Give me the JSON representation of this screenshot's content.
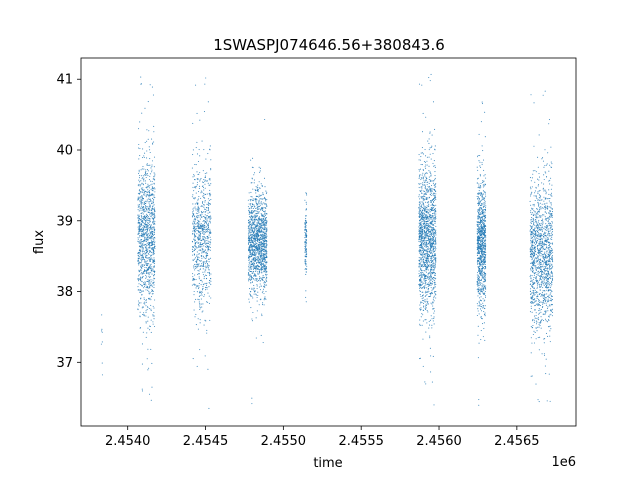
{
  "chart_data": {
    "type": "scatter",
    "title": "1SWASPJ074646.56+380843.6",
    "xlabel": "time",
    "ylabel": "flux",
    "x_offset_label": "1e6",
    "xlim": [
      2453700,
      2456880
    ],
    "ylim": [
      36.1,
      41.3
    ],
    "x_ticks": [
      2454000,
      2454500,
      2455000,
      2455500,
      2456000,
      2456500
    ],
    "x_tick_labels": [
      "2.4540",
      "2.4545",
      "2.4550",
      "2.4555",
      "2.4560",
      "2.4565"
    ],
    "y_ticks": [
      37,
      38,
      39,
      40,
      41
    ],
    "y_tick_labels": [
      "37",
      "38",
      "39",
      "40",
      "41"
    ],
    "marker_color": "#1f77b4",
    "grid": false,
    "legend": "none",
    "series": [
      {
        "observing_seasons": [
          {
            "x_start": 2453830,
            "x_end": 2453840,
            "y_center": 37.3,
            "y_spread": 0.3,
            "n": 8
          },
          {
            "x_start": 2454065,
            "x_end": 2454175,
            "y_center": 38.75,
            "y_spread": 0.55,
            "n": 1100,
            "y_min": 36.45,
            "y_max": 41.05
          },
          {
            "x_start": 2454415,
            "x_end": 2454535,
            "y_center": 38.75,
            "y_spread": 0.5,
            "n": 750,
            "y_min": 36.3,
            "y_max": 41.05
          },
          {
            "x_start": 2454775,
            "x_end": 2454895,
            "y_center": 38.7,
            "y_spread": 0.35,
            "n": 1300,
            "y_min": 36.4,
            "y_max": 40.8
          },
          {
            "x_start": 2455138,
            "x_end": 2455150,
            "y_center": 38.7,
            "y_spread": 0.25,
            "n": 120,
            "y_min": 37.8,
            "y_max": 39.45
          },
          {
            "x_start": 2455870,
            "x_end": 2455980,
            "y_center": 38.75,
            "y_spread": 0.5,
            "n": 1400,
            "y_min": 36.35,
            "y_max": 41.1
          },
          {
            "x_start": 2456245,
            "x_end": 2456300,
            "y_center": 38.7,
            "y_spread": 0.45,
            "n": 900,
            "y_min": 36.3,
            "y_max": 40.7
          },
          {
            "x_start": 2456585,
            "x_end": 2456730,
            "y_center": 38.5,
            "y_spread": 0.5,
            "n": 1300,
            "y_min": 36.4,
            "y_max": 40.95
          }
        ]
      }
    ]
  }
}
